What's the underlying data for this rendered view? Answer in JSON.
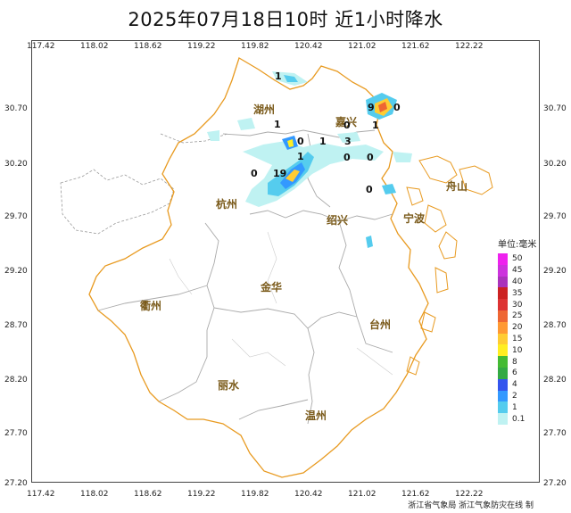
{
  "title": "2025年07月18日10时  近1小时降水",
  "axes": {
    "lon_ticks": [
      "117.42",
      "118.02",
      "118.62",
      "119.22",
      "119.82",
      "120.42",
      "121.02",
      "121.62",
      "122.22"
    ],
    "lat_ticks": [
      "30.70",
      "30.20",
      "29.70",
      "29.20",
      "28.70",
      "28.20",
      "27.70",
      "27.20"
    ]
  },
  "cities": [
    {
      "name": "湖州"
    },
    {
      "name": "嘉兴"
    },
    {
      "name": "舟山"
    },
    {
      "name": "杭州"
    },
    {
      "name": "绍兴"
    },
    {
      "name": "宁波"
    },
    {
      "name": "衢州"
    },
    {
      "name": "金华"
    },
    {
      "name": "台州"
    },
    {
      "name": "丽水"
    },
    {
      "name": "温州"
    }
  ],
  "station_values": [
    {
      "v": "1"
    },
    {
      "v": "9"
    },
    {
      "v": "0"
    },
    {
      "v": "1"
    },
    {
      "v": "0"
    },
    {
      "v": "1"
    },
    {
      "v": "0"
    },
    {
      "v": "1"
    },
    {
      "v": "3"
    },
    {
      "v": "1"
    },
    {
      "v": "0"
    },
    {
      "v": "0"
    },
    {
      "v": "0"
    },
    {
      "v": "19"
    },
    {
      "v": "0"
    }
  ],
  "legend": {
    "title": "单位:毫米",
    "items": [
      {
        "label": "50",
        "color": "#ee22ee"
      },
      {
        "label": "45",
        "color": "#cc33dd"
      },
      {
        "label": "40",
        "color": "#aa33bb"
      },
      {
        "label": "35",
        "color": "#cc2222"
      },
      {
        "label": "30",
        "color": "#dd3333"
      },
      {
        "label": "25",
        "color": "#ee6633"
      },
      {
        "label": "20",
        "color": "#ff9933"
      },
      {
        "label": "15",
        "color": "#ffcc33"
      },
      {
        "label": "10",
        "color": "#ffee22"
      },
      {
        "label": "8",
        "color": "#44bb33"
      },
      {
        "label": "6",
        "color": "#33aa44"
      },
      {
        "label": "4",
        "color": "#3355ee"
      },
      {
        "label": "2",
        "color": "#3399ff"
      },
      {
        "label": "1",
        "color": "#55ccee"
      },
      {
        "label": "0.1",
        "color": "#bff2f2"
      }
    ]
  },
  "credit": "浙江省气象局   浙江气象防灾在线  制"
}
